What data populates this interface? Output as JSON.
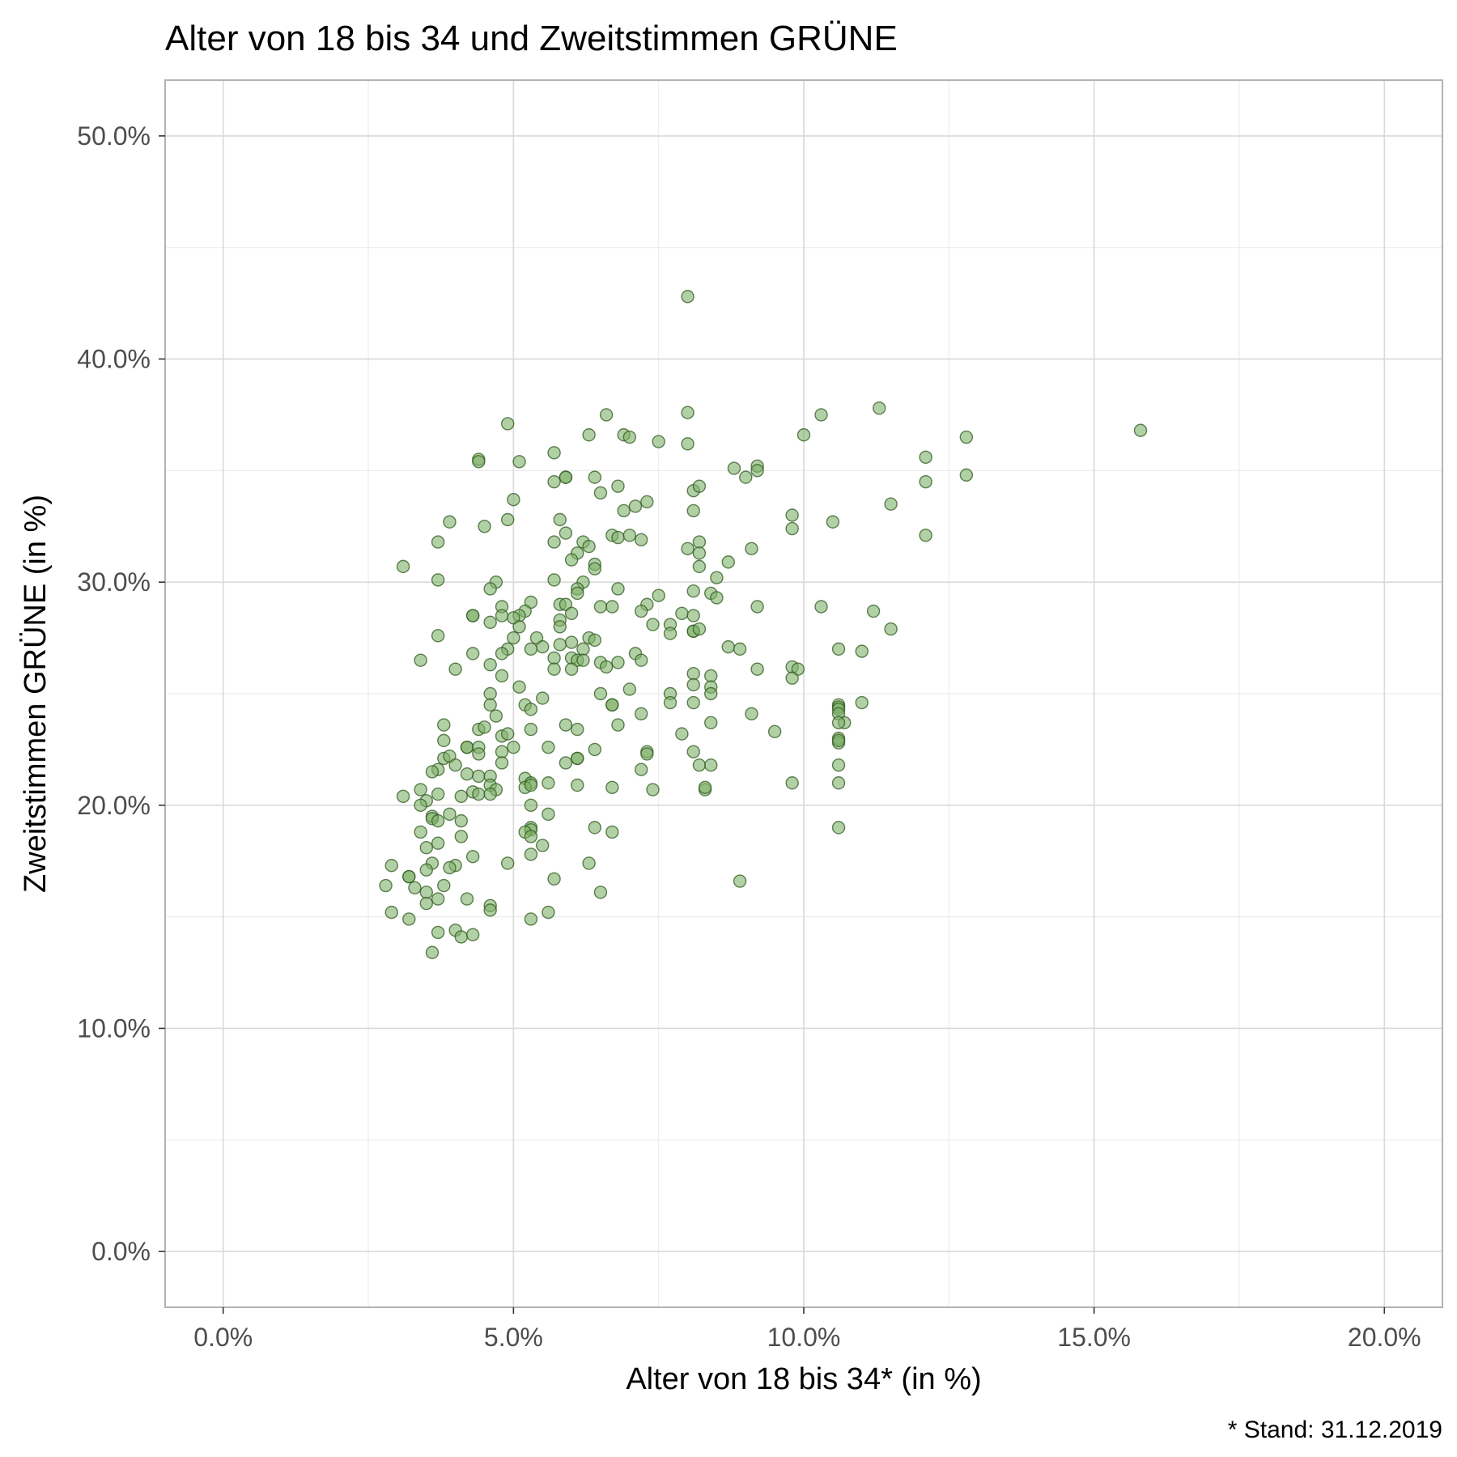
{
  "chart_data": {
    "type": "scatter",
    "title": "Alter von 18 bis 34 und Zweitstimmen GRÜNE",
    "xlabel": "Alter von 18 bis 34* (in %)",
    "ylabel": "Zweitstimmen GRÜNE (in %)",
    "caption": "* Stand: 31.12.2019",
    "xlim": [
      -1.0,
      21.0
    ],
    "ylim": [
      -2.5,
      52.5
    ],
    "x_ticks": [
      0,
      5,
      10,
      15,
      20
    ],
    "x_tick_labels": [
      "0.0%",
      "5.0%",
      "10.0%",
      "15.0%",
      "20.0%"
    ],
    "y_ticks": [
      0,
      10,
      20,
      30,
      40,
      50
    ],
    "y_tick_labels": [
      "0.0%",
      "10.0%",
      "20.0%",
      "30.0%",
      "40.0%",
      "50.0%"
    ],
    "grid": true,
    "colors": {
      "point_fill": "#7fb069",
      "point_stroke": "#2f5a1f",
      "grid_major": "#d9d9d9",
      "grid_minor": "#ececec",
      "panel_border": "#b3b3b3"
    },
    "points": [
      [
        8.0,
        42.8
      ],
      [
        15.8,
        36.8
      ],
      [
        11.3,
        37.8
      ],
      [
        10.3,
        37.5
      ],
      [
        8.0,
        37.6
      ],
      [
        6.6,
        37.5
      ],
      [
        4.9,
        37.1
      ],
      [
        6.3,
        36.6
      ],
      [
        6.9,
        36.6
      ],
      [
        7.0,
        36.5
      ],
      [
        7.5,
        36.3
      ],
      [
        10.0,
        36.6
      ],
      [
        8.0,
        36.2
      ],
      [
        12.8,
        36.5
      ],
      [
        5.7,
        35.8
      ],
      [
        4.4,
        35.5
      ],
      [
        4.4,
        35.4
      ],
      [
        5.1,
        35.4
      ],
      [
        12.1,
        35.6
      ],
      [
        9.2,
        35.2
      ],
      [
        9.2,
        35.0
      ],
      [
        8.8,
        35.1
      ],
      [
        9.0,
        34.7
      ],
      [
        12.8,
        34.8
      ],
      [
        12.1,
        34.5
      ],
      [
        5.9,
        34.7
      ],
      [
        5.9,
        34.7
      ],
      [
        6.4,
        34.7
      ],
      [
        5.7,
        34.5
      ],
      [
        6.8,
        34.3
      ],
      [
        8.1,
        34.1
      ],
      [
        8.2,
        34.3
      ],
      [
        6.5,
        34.0
      ],
      [
        7.3,
        33.6
      ],
      [
        7.1,
        33.4
      ],
      [
        6.9,
        33.2
      ],
      [
        5.0,
        33.7
      ],
      [
        8.1,
        33.2
      ],
      [
        11.5,
        33.5
      ],
      [
        4.9,
        32.8
      ],
      [
        5.8,
        32.8
      ],
      [
        4.5,
        32.5
      ],
      [
        3.9,
        32.7
      ],
      [
        9.8,
        33.0
      ],
      [
        9.8,
        32.4
      ],
      [
        10.5,
        32.7
      ],
      [
        12.1,
        32.1
      ],
      [
        5.9,
        32.2
      ],
      [
        6.7,
        32.1
      ],
      [
        6.8,
        32.0
      ],
      [
        7.0,
        32.1
      ],
      [
        7.2,
        31.9
      ],
      [
        3.7,
        31.8
      ],
      [
        5.7,
        31.8
      ],
      [
        6.2,
        31.8
      ],
      [
        6.3,
        31.6
      ],
      [
        8.2,
        31.8
      ],
      [
        8.0,
        31.5
      ],
      [
        8.2,
        31.3
      ],
      [
        9.1,
        31.5
      ],
      [
        6.1,
        31.3
      ],
      [
        6.0,
        31.0
      ],
      [
        6.4,
        30.8
      ],
      [
        6.4,
        30.6
      ],
      [
        8.2,
        30.7
      ],
      [
        8.7,
        30.9
      ],
      [
        3.1,
        30.7
      ],
      [
        5.7,
        30.1
      ],
      [
        3.7,
        30.1
      ],
      [
        6.2,
        30.0
      ],
      [
        4.7,
        30.0
      ],
      [
        4.6,
        29.7
      ],
      [
        6.1,
        29.7
      ],
      [
        6.1,
        29.5
      ],
      [
        6.8,
        29.7
      ],
      [
        7.5,
        29.4
      ],
      [
        8.1,
        29.6
      ],
      [
        8.4,
        29.5
      ],
      [
        8.5,
        29.3
      ],
      [
        8.5,
        30.2
      ],
      [
        7.3,
        29.0
      ],
      [
        6.7,
        28.9
      ],
      [
        6.5,
        28.9
      ],
      [
        5.8,
        29.0
      ],
      [
        5.3,
        29.1
      ],
      [
        5.9,
        29.0
      ],
      [
        4.8,
        28.9
      ],
      [
        9.2,
        28.9
      ],
      [
        10.3,
        28.9
      ],
      [
        11.2,
        28.7
      ],
      [
        5.2,
        28.7
      ],
      [
        5.1,
        28.5
      ],
      [
        5.0,
        28.4
      ],
      [
        4.8,
        28.5
      ],
      [
        4.3,
        28.5
      ],
      [
        4.3,
        28.5
      ],
      [
        4.6,
        28.2
      ],
      [
        5.1,
        28.0
      ],
      [
        5.8,
        28.3
      ],
      [
        5.8,
        28.0
      ],
      [
        6.0,
        28.6
      ],
      [
        7.2,
        28.7
      ],
      [
        7.4,
        28.1
      ],
      [
        7.9,
        28.6
      ],
      [
        8.1,
        28.5
      ],
      [
        7.7,
        28.1
      ],
      [
        7.7,
        27.7
      ],
      [
        8.1,
        27.8
      ],
      [
        8.1,
        27.8
      ],
      [
        8.2,
        27.9
      ],
      [
        11.5,
        27.9
      ],
      [
        3.7,
        27.6
      ],
      [
        5.0,
        27.5
      ],
      [
        5.4,
        27.5
      ],
      [
        6.3,
        27.5
      ],
      [
        6.4,
        27.4
      ],
      [
        6.0,
        27.3
      ],
      [
        5.8,
        27.2
      ],
      [
        5.5,
        27.1
      ],
      [
        5.3,
        27.0
      ],
      [
        4.9,
        27.0
      ],
      [
        4.8,
        26.8
      ],
      [
        4.3,
        26.8
      ],
      [
        6.2,
        27.0
      ],
      [
        7.1,
        26.8
      ],
      [
        7.2,
        26.5
      ],
      [
        8.7,
        27.1
      ],
      [
        8.9,
        27.0
      ],
      [
        10.6,
        27.0
      ],
      [
        11.0,
        26.9
      ],
      [
        3.4,
        26.5
      ],
      [
        5.7,
        26.6
      ],
      [
        6.0,
        26.6
      ],
      [
        6.1,
        26.5
      ],
      [
        6.2,
        26.5
      ],
      [
        6.5,
        26.4
      ],
      [
        6.6,
        26.2
      ],
      [
        6.8,
        26.4
      ],
      [
        4.6,
        26.3
      ],
      [
        4.0,
        26.1
      ],
      [
        5.7,
        26.1
      ],
      [
        6.0,
        26.1
      ],
      [
        9.2,
        26.1
      ],
      [
        9.8,
        26.2
      ],
      [
        9.9,
        26.1
      ],
      [
        9.8,
        25.7
      ],
      [
        8.1,
        25.9
      ],
      [
        8.4,
        25.8
      ],
      [
        8.1,
        25.4
      ],
      [
        8.4,
        25.3
      ],
      [
        8.4,
        25.0
      ],
      [
        6.5,
        25.0
      ],
      [
        7.0,
        25.2
      ],
      [
        7.7,
        25.0
      ],
      [
        5.5,
        24.8
      ],
      [
        4.6,
        25.0
      ],
      [
        5.1,
        25.3
      ],
      [
        4.8,
        25.8
      ],
      [
        4.6,
        24.5
      ],
      [
        5.2,
        24.5
      ],
      [
        5.3,
        24.3
      ],
      [
        4.7,
        24.0
      ],
      [
        7.7,
        24.6
      ],
      [
        8.1,
        24.6
      ],
      [
        6.7,
        24.5
      ],
      [
        6.7,
        24.5
      ],
      [
        7.2,
        24.1
      ],
      [
        9.1,
        24.1
      ],
      [
        10.6,
        24.5
      ],
      [
        10.6,
        24.4
      ],
      [
        10.6,
        24.3
      ],
      [
        10.6,
        24.1
      ],
      [
        10.7,
        23.7
      ],
      [
        10.6,
        23.7
      ],
      [
        11.0,
        24.6
      ],
      [
        3.8,
        23.6
      ],
      [
        4.4,
        23.4
      ],
      [
        4.5,
        23.5
      ],
      [
        5.3,
        23.4
      ],
      [
        5.9,
        23.6
      ],
      [
        6.1,
        23.4
      ],
      [
        6.8,
        23.6
      ],
      [
        7.9,
        23.2
      ],
      [
        8.4,
        23.7
      ],
      [
        9.5,
        23.3
      ],
      [
        10.6,
        23.0
      ],
      [
        10.6,
        22.8
      ],
      [
        10.6,
        22.9
      ],
      [
        4.8,
        23.1
      ],
      [
        4.9,
        23.2
      ],
      [
        3.8,
        22.9
      ],
      [
        4.2,
        22.6
      ],
      [
        4.2,
        22.6
      ],
      [
        4.4,
        22.6
      ],
      [
        4.4,
        22.3
      ],
      [
        4.8,
        22.4
      ],
      [
        5.0,
        22.6
      ],
      [
        5.6,
        22.6
      ],
      [
        6.4,
        22.5
      ],
      [
        7.3,
        22.4
      ],
      [
        7.3,
        22.3
      ],
      [
        8.1,
        22.4
      ],
      [
        3.8,
        22.1
      ],
      [
        3.9,
        22.2
      ],
      [
        4.0,
        21.8
      ],
      [
        3.7,
        21.6
      ],
      [
        3.6,
        21.5
      ],
      [
        4.2,
        21.4
      ],
      [
        4.4,
        21.3
      ],
      [
        4.6,
        21.3
      ],
      [
        4.8,
        21.9
      ],
      [
        5.2,
        21.2
      ],
      [
        5.3,
        21.0
      ],
      [
        5.6,
        21.0
      ],
      [
        5.9,
        21.9
      ],
      [
        6.1,
        22.1
      ],
      [
        6.1,
        22.1
      ],
      [
        7.2,
        21.6
      ],
      [
        8.2,
        21.8
      ],
      [
        8.4,
        21.8
      ],
      [
        10.6,
        21.8
      ],
      [
        10.6,
        21.0
      ],
      [
        9.8,
        21.0
      ],
      [
        8.3,
        20.7
      ],
      [
        8.3,
        20.8
      ],
      [
        7.4,
        20.7
      ],
      [
        6.7,
        20.8
      ],
      [
        6.1,
        20.9
      ],
      [
        5.2,
        20.8
      ],
      [
        5.3,
        20.9
      ],
      [
        4.6,
        20.9
      ],
      [
        4.7,
        20.7
      ],
      [
        4.3,
        20.6
      ],
      [
        4.4,
        20.5
      ],
      [
        4.6,
        20.5
      ],
      [
        4.1,
        20.4
      ],
      [
        3.7,
        20.5
      ],
      [
        3.1,
        20.4
      ],
      [
        3.4,
        20.7
      ],
      [
        3.5,
        20.2
      ],
      [
        3.4,
        20.0
      ],
      [
        5.3,
        20.0
      ],
      [
        5.6,
        19.6
      ],
      [
        3.6,
        19.5
      ],
      [
        3.6,
        19.4
      ],
      [
        3.7,
        19.3
      ],
      [
        3.9,
        19.6
      ],
      [
        4.1,
        19.3
      ],
      [
        4.1,
        18.6
      ],
      [
        3.4,
        18.8
      ],
      [
        5.3,
        19.0
      ],
      [
        5.3,
        18.9
      ],
      [
        5.2,
        18.8
      ],
      [
        6.4,
        19.0
      ],
      [
        6.7,
        18.8
      ],
      [
        10.6,
        19.0
      ],
      [
        5.3,
        18.6
      ],
      [
        5.5,
        18.2
      ],
      [
        3.7,
        18.3
      ],
      [
        3.5,
        18.1
      ],
      [
        4.3,
        17.7
      ],
      [
        5.3,
        17.8
      ],
      [
        4.9,
        17.4
      ],
      [
        3.6,
        17.4
      ],
      [
        3.5,
        17.1
      ],
      [
        4.0,
        17.3
      ],
      [
        3.9,
        17.2
      ],
      [
        2.9,
        17.3
      ],
      [
        3.2,
        16.8
      ],
      [
        3.2,
        16.8
      ],
      [
        5.7,
        16.7
      ],
      [
        6.3,
        17.4
      ],
      [
        8.9,
        16.6
      ],
      [
        2.8,
        16.4
      ],
      [
        3.3,
        16.3
      ],
      [
        3.5,
        16.1
      ],
      [
        3.8,
        16.4
      ],
      [
        6.5,
        16.1
      ],
      [
        3.5,
        15.6
      ],
      [
        3.7,
        15.8
      ],
      [
        4.2,
        15.8
      ],
      [
        4.6,
        15.5
      ],
      [
        4.6,
        15.3
      ],
      [
        5.6,
        15.2
      ],
      [
        5.3,
        14.9
      ],
      [
        2.9,
        15.2
      ],
      [
        3.2,
        14.9
      ],
      [
        3.7,
        14.3
      ],
      [
        4.0,
        14.4
      ],
      [
        4.1,
        14.1
      ],
      [
        4.3,
        14.2
      ],
      [
        3.6,
        13.4
      ]
    ]
  }
}
